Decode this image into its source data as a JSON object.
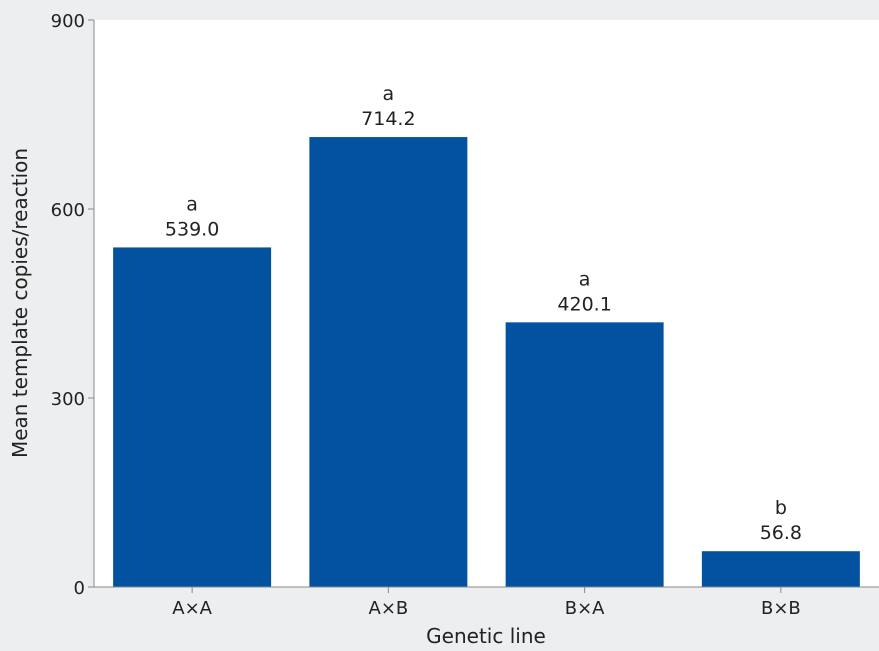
{
  "chart_data": {
    "type": "bar",
    "categories": [
      "A×A",
      "A×B",
      "B×A",
      "B×B"
    ],
    "values": [
      539.0,
      714.2,
      420.1,
      56.8
    ],
    "value_labels": [
      "539.0",
      "714.2",
      "420.1",
      "56.8"
    ],
    "significance_letters": [
      "a",
      "a",
      "a",
      "b"
    ],
    "xlabel": "Genetic line",
    "ylabel": "Mean template copies/reaction",
    "ylim": [
      0,
      900
    ],
    "yticks": [
      0,
      300,
      600,
      900
    ],
    "grid": false,
    "colors": {
      "bar": "#0352a0",
      "plot_background": "#ffffff",
      "page_background": "#edeeef",
      "axis": "#888888"
    }
  }
}
